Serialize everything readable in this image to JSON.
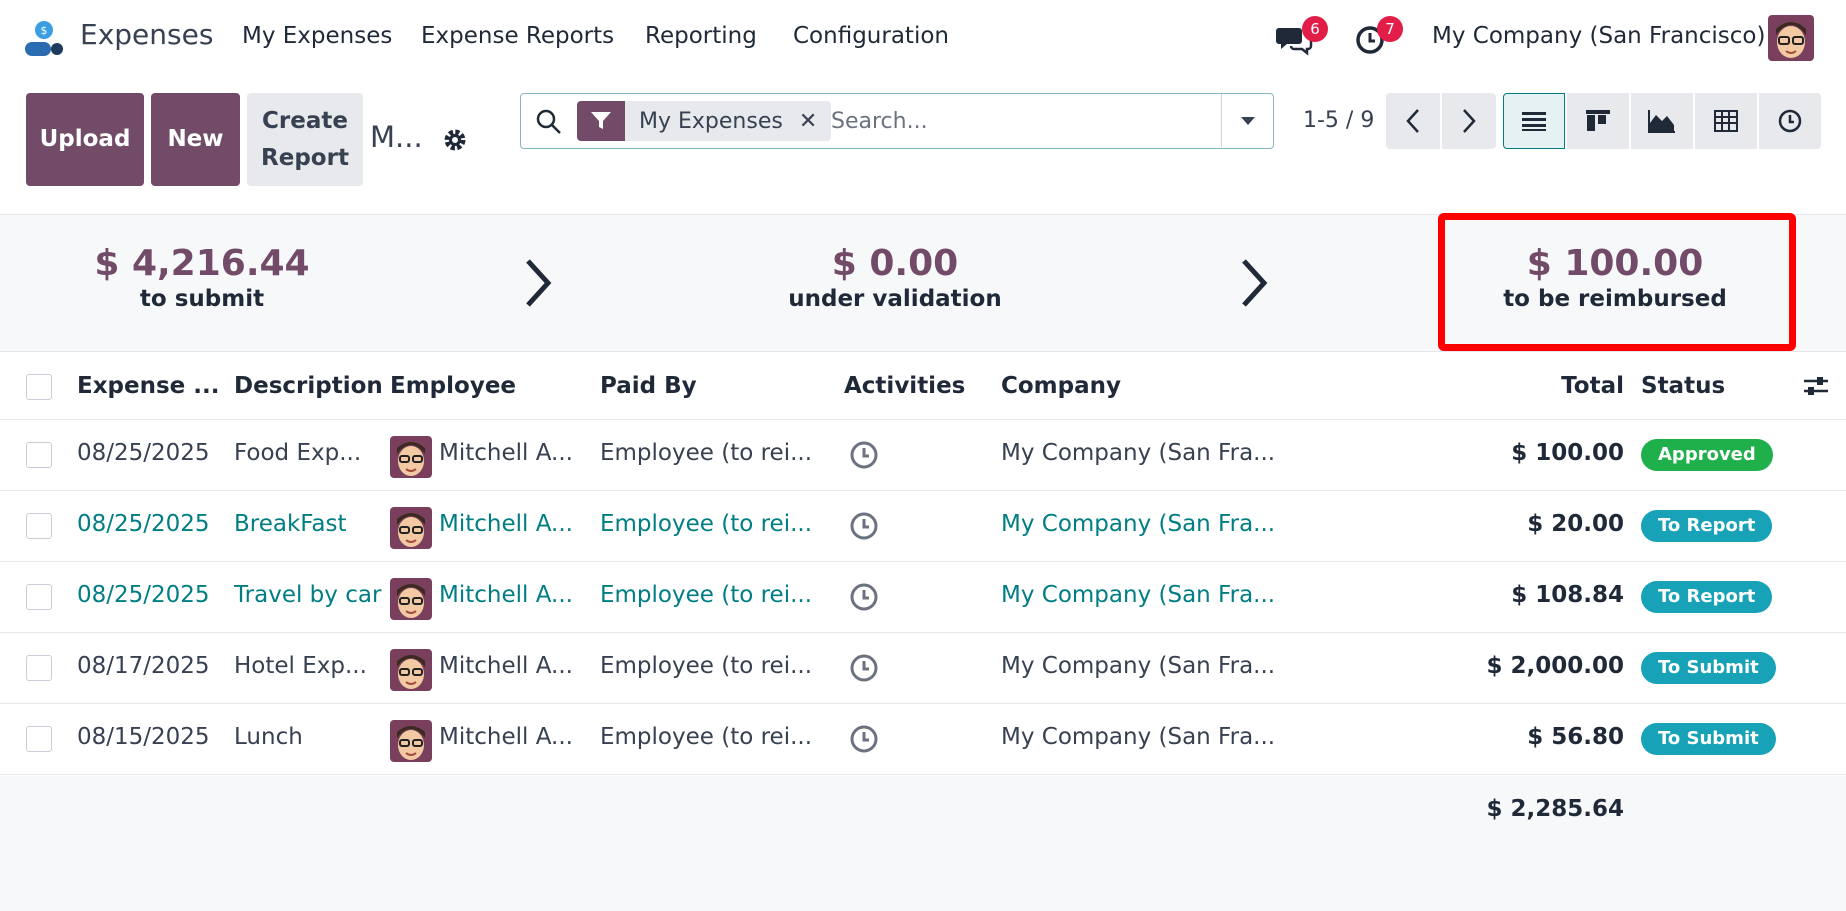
{
  "app": {
    "name": "Expenses"
  },
  "menu": [
    "My Expenses",
    "Expense Reports",
    "Reporting",
    "Configuration"
  ],
  "notifications": {
    "messages": "6",
    "activities": "7"
  },
  "company": "My Company (San Francisco)",
  "buttons": {
    "upload": "Upload",
    "new": "New",
    "create_report_line1": "Create",
    "create_report_line2": "Report"
  },
  "breadcrumb": "M...",
  "search": {
    "facet": "My Expenses",
    "placeholder": "Search..."
  },
  "pager": "1-5 / 9",
  "summary": [
    {
      "amount": "$ 4,216.44",
      "label": "to submit"
    },
    {
      "amount": "$ 0.00",
      "label": "under validation"
    },
    {
      "amount": "$ 100.00",
      "label": "to be reimbursed"
    }
  ],
  "table": {
    "headers": {
      "date": "Expense ...",
      "description": "Description",
      "employee": "Employee",
      "paid_by": "Paid By",
      "activities": "Activities",
      "company": "Company",
      "total": "Total",
      "status": "Status"
    },
    "rows": [
      {
        "date": "08/25/2025",
        "description": "Food Exp...",
        "employee": "Mitchell A...",
        "paid_by": "Employee (to rei...",
        "company": "My Company (San Fra...",
        "total": "$ 100.00",
        "status": "Approved"
      },
      {
        "date": "08/25/2025",
        "description": "BreakFast",
        "employee": "Mitchell A...",
        "paid_by": "Employee (to rei...",
        "company": "My Company (San Fra...",
        "total": "$ 20.00",
        "status": "To Report"
      },
      {
        "date": "08/25/2025",
        "description": "Travel by car",
        "employee": "Mitchell A...",
        "paid_by": "Employee (to rei...",
        "company": "My Company (San Fra...",
        "total": "$ 108.84",
        "status": "To Report"
      },
      {
        "date": "08/17/2025",
        "description": "Hotel Exp...",
        "employee": "Mitchell A...",
        "paid_by": "Employee (to rei...",
        "company": "My Company (San Fra...",
        "total": "$ 2,000.00",
        "status": "To Submit"
      },
      {
        "date": "08/15/2025",
        "description": "Lunch",
        "employee": "Mitchell A...",
        "paid_by": "Employee (to rei...",
        "company": "My Company (San Fra...",
        "total": "$ 56.80",
        "status": "To Submit"
      }
    ],
    "grand_total": "$ 2,285.64"
  },
  "colors": {
    "brand": "#714b67",
    "teal": "#017e84",
    "approved": "#20b04b",
    "status_info": "#17a2b8",
    "highlight_box": "#ff0000"
  }
}
